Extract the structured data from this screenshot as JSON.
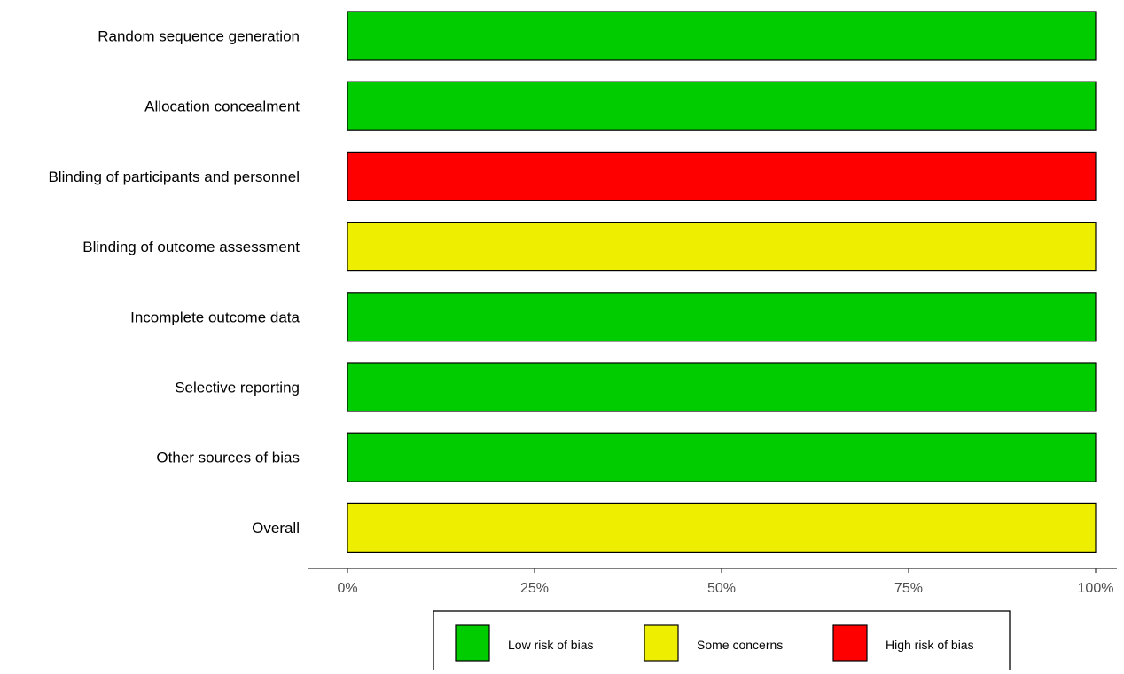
{
  "chart_data": {
    "type": "bar",
    "orientation": "horizontal",
    "stacked": true,
    "categories": [
      "Random sequence generation",
      "Allocation concealment",
      "Blinding of participants and personnel",
      "Blinding of outcome assessment",
      "Incomplete outcome data",
      "Selective reporting",
      "Other sources of bias",
      "Overall"
    ],
    "series": [
      {
        "name": "Low risk of bias",
        "color": "#00CC00",
        "values": [
          100,
          100,
          0,
          0,
          100,
          100,
          100,
          0
        ]
      },
      {
        "name": "Some concerns",
        "color": "#EEEE00",
        "values": [
          0,
          0,
          0,
          100,
          0,
          0,
          0,
          100
        ]
      },
      {
        "name": "High risk of bias",
        "color": "#FF0000",
        "values": [
          0,
          0,
          100,
          0,
          0,
          0,
          0,
          0
        ]
      }
    ],
    "xlim": [
      0,
      100
    ],
    "xticks": [
      0,
      25,
      50,
      75,
      100
    ],
    "xtick_labels": [
      "0%",
      "25%",
      "50%",
      "75%",
      "100%"
    ],
    "grid": false,
    "legend": "bottom"
  }
}
